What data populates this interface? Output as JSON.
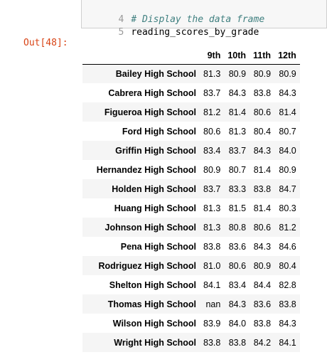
{
  "code_cell": {
    "lines": [
      {
        "number": "4",
        "text": "# Display the data frame",
        "kind": "comment"
      },
      {
        "number": "5",
        "text": "reading_scores_by_grade",
        "kind": "code"
      }
    ]
  },
  "output": {
    "prompt": "Out[48]:",
    "table": {
      "columns": [
        "9th",
        "10th",
        "11th",
        "12th"
      ],
      "rows": [
        {
          "school": "Bailey High School",
          "values": [
            "81.3",
            "80.9",
            "80.9",
            "80.9"
          ]
        },
        {
          "school": "Cabrera High School",
          "values": [
            "83.7",
            "84.3",
            "83.8",
            "84.3"
          ]
        },
        {
          "school": "Figueroa High School",
          "values": [
            "81.2",
            "81.4",
            "80.6",
            "81.4"
          ]
        },
        {
          "school": "Ford High School",
          "values": [
            "80.6",
            "81.3",
            "80.4",
            "80.7"
          ]
        },
        {
          "school": "Griffin High School",
          "values": [
            "83.4",
            "83.7",
            "84.3",
            "84.0"
          ]
        },
        {
          "school": "Hernandez High School",
          "values": [
            "80.9",
            "80.7",
            "81.4",
            "80.9"
          ]
        },
        {
          "school": "Holden High School",
          "values": [
            "83.7",
            "83.3",
            "83.8",
            "84.7"
          ]
        },
        {
          "school": "Huang High School",
          "values": [
            "81.3",
            "81.5",
            "81.4",
            "80.3"
          ]
        },
        {
          "school": "Johnson High School",
          "values": [
            "81.3",
            "80.8",
            "80.6",
            "81.2"
          ]
        },
        {
          "school": "Pena High School",
          "values": [
            "83.8",
            "83.6",
            "84.3",
            "84.6"
          ]
        },
        {
          "school": "Rodriguez High School",
          "values": [
            "81.0",
            "80.6",
            "80.9",
            "80.4"
          ]
        },
        {
          "school": "Shelton High School",
          "values": [
            "84.1",
            "83.4",
            "84.4",
            "82.8"
          ]
        },
        {
          "school": "Thomas High School",
          "values": [
            "nan",
            "84.3",
            "83.6",
            "83.8"
          ]
        },
        {
          "school": "Wilson High School",
          "values": [
            "83.9",
            "84.0",
            "83.8",
            "84.3"
          ]
        },
        {
          "school": "Wright High School",
          "values": [
            "83.8",
            "83.8",
            "84.2",
            "84.1"
          ]
        }
      ]
    }
  }
}
